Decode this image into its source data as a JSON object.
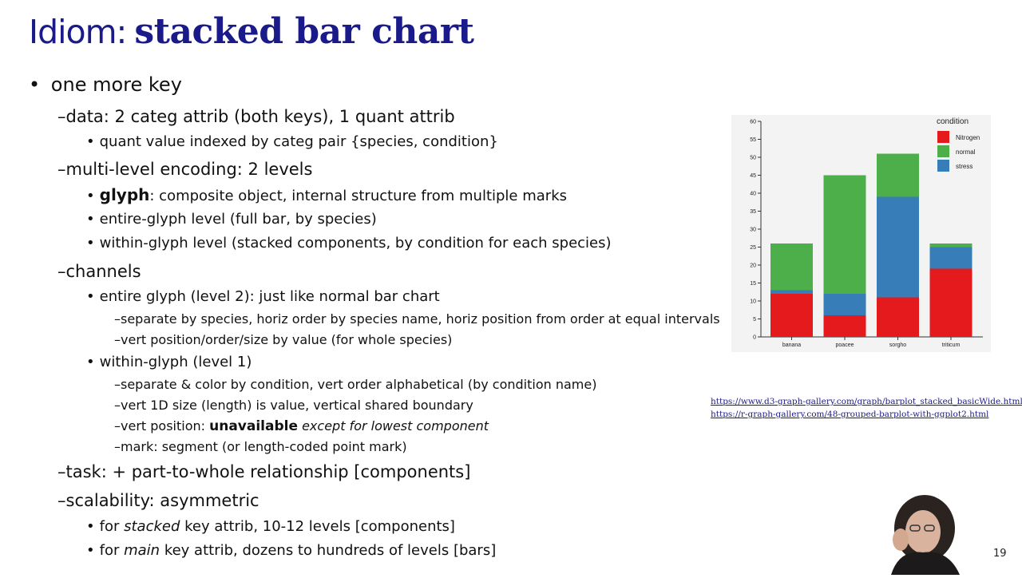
{
  "title": {
    "prefix": "Idiom:",
    "main": "stacked bar chart"
  },
  "bullets": {
    "b0": "one more key",
    "b1": "data: 2 categ attrib (both keys), 1 quant attrib",
    "b1a": "quant value indexed by categ pair {species, condition}",
    "b2": "multi-level encoding: 2 levels",
    "b2a_bold": "glyph",
    "b2a_rest": ": composite object, internal structure from multiple marks",
    "b2b": "entire-glyph level (full bar, by species)",
    "b2c": "within-glyph level (stacked components, by condition for each species)",
    "b3": "channels",
    "b3a": "entire glyph (level 2): just like normal bar chart",
    "b3a1": "separate by species, horiz order by species name, horiz position from order at equal intervals",
    "b3a2": "vert position/order/size by value (for whole species)",
    "b3b": "within-glyph (level 1)",
    "b3b1": "separate & color by condition, vert order alphabetical (by condition name)",
    "b3b2": "vert 1D size (length) is value, vertical shared boundary",
    "b3b3_pre": "vert position: ",
    "b3b3_bold": "unavailable",
    "b3b3_ital": " except for lowest component",
    "b3b4": "mark: segment (or length-coded point mark)",
    "b4": "task: + part-to-whole relationship [components]",
    "b5": "scalability: asymmetric",
    "b5a_pre": "for ",
    "b5a_ital": "stacked",
    "b5a_rest": " key attrib, 10-12 levels [components]",
    "b5b_pre": "for ",
    "b5b_ital": "main",
    "b5b_rest": " key attrib, dozens to hundreds of levels [bars]"
  },
  "links": [
    "https://www.d3-graph-gallery.com/graph/barplot_stacked_basicWide.html",
    "https://r-graph-gallery.com/48-grouped-barplot-with-ggplot2.html"
  ],
  "page_number": "19",
  "chart_data": {
    "type": "bar",
    "stacked": true,
    "categories": [
      "banana",
      "poacee",
      "sorgho",
      "triticum"
    ],
    "series": [
      {
        "name": "Nitrogen",
        "color": "#e41a1c",
        "values": [
          12,
          6,
          11,
          19
        ]
      },
      {
        "name": "stress",
        "color": "#377eb8",
        "values": [
          1,
          6,
          28,
          6
        ]
      },
      {
        "name": "normal",
        "color": "#4daf4a",
        "values": [
          13,
          33,
          12,
          1
        ]
      }
    ],
    "legend_title": "condition",
    "legend_order": [
      "Nitrogen",
      "normal",
      "stress"
    ],
    "ylim": [
      0,
      60
    ],
    "yticks": [
      0,
      5,
      10,
      15,
      20,
      25,
      30,
      35,
      40,
      45,
      50,
      55,
      60
    ],
    "legend_position": "top-right"
  }
}
